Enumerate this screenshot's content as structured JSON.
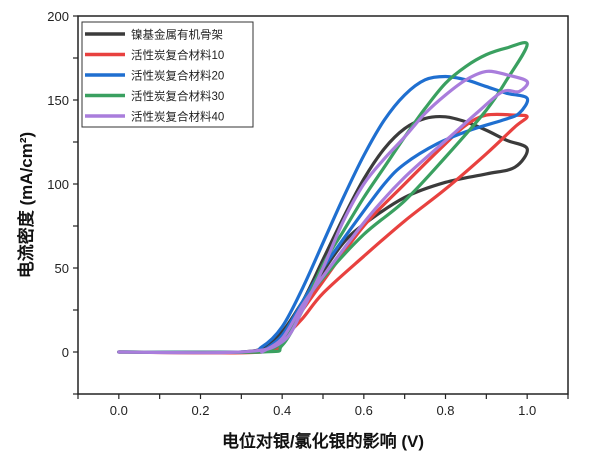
{
  "chart_data": {
    "type": "line",
    "title": "",
    "xlabel": "电位对银/氯化银的影响 (V)",
    "ylabel": "电流密度 (mA/cm²)",
    "xlim": [
      -0.1,
      1.1
    ],
    "ylim": [
      -25,
      200
    ],
    "xticks": [
      "0.0",
      "0.2",
      "0.4",
      "0.6",
      "0.8",
      "1.0"
    ],
    "xtick_values": [
      0,
      0.2,
      0.4,
      0.6,
      0.8,
      1.0
    ],
    "yticks": [
      "0",
      "50",
      "100",
      "150",
      "200"
    ],
    "ytick_values": [
      0,
      50,
      100,
      150,
      200
    ],
    "grid": false,
    "legend": "top-left",
    "series": [
      {
        "name": "镍基金属有机骨架",
        "color": "#3b3b3b",
        "points": [
          [
            0,
            0
          ],
          [
            0.3,
            0
          ],
          [
            0.35,
            2
          ],
          [
            0.4,
            12
          ],
          [
            0.45,
            30
          ],
          [
            0.5,
            55
          ],
          [
            0.55,
            80
          ],
          [
            0.6,
            103
          ],
          [
            0.65,
            121
          ],
          [
            0.7,
            133
          ],
          [
            0.75,
            139
          ],
          [
            0.8,
            140
          ],
          [
            0.85,
            137
          ],
          [
            0.9,
            132
          ],
          [
            0.95,
            126
          ],
          [
            1.0,
            121
          ],
          [
            0.97,
            110
          ],
          [
            0.9,
            106
          ],
          [
            0.8,
            101
          ],
          [
            0.7,
            92
          ],
          [
            0.6,
            76
          ],
          [
            0.55,
            65
          ],
          [
            0.5,
            48
          ],
          [
            0.45,
            30
          ],
          [
            0.4,
            12
          ],
          [
            0.35,
            2
          ],
          [
            0.3,
            0
          ]
        ]
      },
      {
        "name": "活性炭复合材料10",
        "color": "#e8413f",
        "points": [
          [
            0,
            0
          ],
          [
            0.35,
            0
          ],
          [
            0.4,
            8
          ],
          [
            0.45,
            20
          ],
          [
            0.5,
            35
          ],
          [
            0.6,
            57
          ],
          [
            0.7,
            78
          ],
          [
            0.8,
            97
          ],
          [
            0.9,
            118
          ],
          [
            0.97,
            134
          ],
          [
            1.0,
            140
          ],
          [
            0.97,
            141
          ],
          [
            0.9,
            141
          ],
          [
            0.85,
            135
          ],
          [
            0.8,
            124
          ],
          [
            0.7,
            100
          ],
          [
            0.6,
            75
          ],
          [
            0.5,
            42
          ],
          [
            0.45,
            25
          ],
          [
            0.4,
            8
          ],
          [
            0.35,
            0
          ]
        ]
      },
      {
        "name": "活性炭复合材料20",
        "color": "#1f6fd0",
        "points": [
          [
            0,
            0
          ],
          [
            0.3,
            0
          ],
          [
            0.35,
            3
          ],
          [
            0.4,
            15
          ],
          [
            0.45,
            38
          ],
          [
            0.5,
            65
          ],
          [
            0.55,
            92
          ],
          [
            0.6,
            117
          ],
          [
            0.65,
            138
          ],
          [
            0.7,
            153
          ],
          [
            0.75,
            162
          ],
          [
            0.8,
            164
          ],
          [
            0.85,
            162
          ],
          [
            0.9,
            158
          ],
          [
            0.95,
            154
          ],
          [
            1.0,
            151
          ],
          [
            0.98,
            142
          ],
          [
            0.94,
            138
          ],
          [
            0.86,
            132
          ],
          [
            0.78,
            124
          ],
          [
            0.7,
            112
          ],
          [
            0.65,
            100
          ],
          [
            0.57,
            74
          ],
          [
            0.5,
            50
          ],
          [
            0.45,
            30
          ],
          [
            0.4,
            10
          ],
          [
            0.35,
            0
          ]
        ]
      },
      {
        "name": "活性炭复合材料30",
        "color": "#3aa060",
        "points": [
          [
            0,
            0
          ],
          [
            0.35,
            0
          ],
          [
            0.4,
            4
          ],
          [
            0.45,
            25
          ],
          [
            0.5,
            52
          ],
          [
            0.55,
            72
          ],
          [
            0.6,
            92
          ],
          [
            0.65,
            110
          ],
          [
            0.7,
            128
          ],
          [
            0.75,
            145
          ],
          [
            0.8,
            160
          ],
          [
            0.85,
            170
          ],
          [
            0.9,
            177
          ],
          [
            0.95,
            181
          ],
          [
            1.0,
            183
          ],
          [
            0.95,
            162
          ],
          [
            0.9,
            144
          ],
          [
            0.8,
            116
          ],
          [
            0.7,
            90
          ],
          [
            0.6,
            70
          ],
          [
            0.5,
            44
          ],
          [
            0.45,
            28
          ],
          [
            0.4,
            6
          ],
          [
            0.35,
            0
          ]
        ]
      },
      {
        "name": "活性炭复合材料40",
        "color": "#a97ddc",
        "points": [
          [
            0,
            0
          ],
          [
            0.3,
            0
          ],
          [
            0.4,
            6
          ],
          [
            0.45,
            25
          ],
          [
            0.5,
            50
          ],
          [
            0.55,
            78
          ],
          [
            0.6,
            100
          ],
          [
            0.65,
            115
          ],
          [
            0.7,
            128
          ],
          [
            0.75,
            142
          ],
          [
            0.8,
            153
          ],
          [
            0.85,
            162
          ],
          [
            0.9,
            167
          ],
          [
            0.95,
            165
          ],
          [
            1.0,
            161
          ],
          [
            0.98,
            155
          ],
          [
            0.94,
            155
          ],
          [
            0.88,
            143
          ],
          [
            0.82,
            130
          ],
          [
            0.7,
            104
          ],
          [
            0.61,
            80
          ],
          [
            0.5,
            45
          ],
          [
            0.45,
            28
          ],
          [
            0.4,
            8
          ],
          [
            0.35,
            0
          ]
        ]
      }
    ]
  }
}
